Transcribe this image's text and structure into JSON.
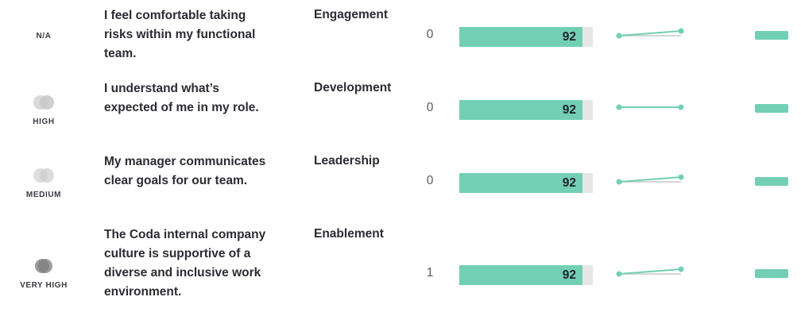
{
  "colors": {
    "accent": "#72cfb4",
    "bar_track": "#e6e6e6",
    "baseline": "#c8c8c8"
  },
  "rows": [
    {
      "confidence_label": "N/A",
      "confidence_icon": "none",
      "question": "I feel comfortable taking risks within my functional team.",
      "category": "Engagement",
      "count": "0",
      "score": "92",
      "score_fraction": 0.92,
      "trend_rise": 0.6
    },
    {
      "confidence_label": "HIGH",
      "confidence_icon": "overlapping-circles-icon",
      "question": "I understand what’s expected of me in my role.",
      "category": "Development",
      "count": "0",
      "score": "92",
      "score_fraction": 0.92,
      "trend_rise": 0.0
    },
    {
      "confidence_label": "MEDIUM",
      "confidence_icon": "overlapping-circles-icon",
      "question": "My manager communicates clear goals for our team.",
      "category": "Leadership",
      "count": "0",
      "score": "92",
      "score_fraction": 0.92,
      "trend_rise": 0.6
    },
    {
      "confidence_label": "VERY HIGH",
      "confidence_icon": "overlapping-circles-dark-icon",
      "question": "The Coda internal company culture is supportive of a diverse and inclusive work environment.",
      "category": "Enablement",
      "count": "1",
      "score": "92",
      "score_fraction": 0.92,
      "trend_rise": 0.6
    }
  ]
}
